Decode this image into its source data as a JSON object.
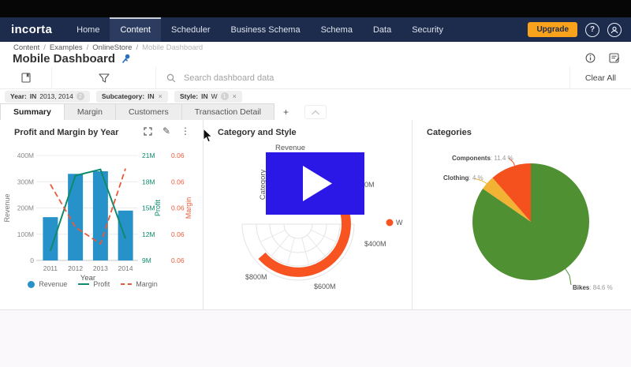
{
  "topnav": {
    "brand": "incorta",
    "items": [
      {
        "label": "Home",
        "active": false
      },
      {
        "label": "Content",
        "active": true
      },
      {
        "label": "Scheduler",
        "active": false
      },
      {
        "label": "Business Schema",
        "active": false
      },
      {
        "label": "Schema",
        "active": false
      },
      {
        "label": "Data",
        "active": false
      },
      {
        "label": "Security",
        "active": false
      }
    ],
    "upgrade_label": "Upgrade",
    "help_icon": "question-mark",
    "user_icon": "person"
  },
  "breadcrumb": [
    "Content",
    "Examples",
    "OnlineStore",
    "Mobile Dashboard"
  ],
  "page": {
    "title": "Mobile Dashboard"
  },
  "toolbar": {
    "search_placeholder": "Search dashboard data",
    "clear_all_label": "Clear All"
  },
  "filters": [
    {
      "name": "Year",
      "op": "IN",
      "value": "2013, 2014",
      "badge": "2",
      "closable": false
    },
    {
      "name": "Subcategory",
      "op": "IN",
      "value": "",
      "badge": "",
      "closable": true
    },
    {
      "name": "Style",
      "op": "IN",
      "value": "W",
      "badge": "1",
      "closable": true
    }
  ],
  "tabs": {
    "items": [
      {
        "label": "Summary",
        "active": true
      },
      {
        "label": "Margin",
        "active": false
      },
      {
        "label": "Customers",
        "active": false
      },
      {
        "label": "Transaction Detail",
        "active": false
      }
    ],
    "add_label": "+"
  },
  "panels": [
    {
      "title": "Profit and Margin by Year"
    },
    {
      "title": "Category and Style"
    },
    {
      "title": "Categories"
    }
  ],
  "chart_data": [
    {
      "type": "bar",
      "subtype": "combo-bar-line",
      "title": "Profit and Margin by Year",
      "categories": [
        "2011",
        "2012",
        "2013",
        "2014"
      ],
      "xlabel": "Year",
      "series": [
        {
          "name": "Revenue",
          "type": "bar",
          "axis": "left",
          "color": "#2791c9",
          "values": [
            165000000,
            330000000,
            340000000,
            190000000
          ]
        },
        {
          "name": "Profit",
          "type": "line",
          "axis": "profit",
          "color": "#0e8a6d",
          "values": [
            10100000,
            18700000,
            19400000,
            11500000
          ]
        },
        {
          "name": "Margin",
          "type": "dashed-line",
          "axis": "margin",
          "color": "#e85a3a",
          "values": [
            0.0627,
            0.0578,
            0.0559,
            0.0645
          ]
        }
      ],
      "axes": {
        "left": {
          "label": "Revenue",
          "ticks": [
            "400M",
            "300M",
            "200M",
            "100M",
            "0"
          ],
          "min": 0,
          "max": 400000000
        },
        "profit": {
          "label": "Profit",
          "ticks": [
            "21M",
            "18M",
            "15M",
            "12M",
            "9M"
          ],
          "min": 9000000,
          "max": 21000000
        },
        "margin": {
          "label": "Margin",
          "ticks": [
            "0.06",
            "0.06",
            "0.06",
            "0.06",
            "0.06"
          ],
          "min": 0.054,
          "max": 0.066
        }
      },
      "legend_position": "bottom",
      "grid": true
    },
    {
      "type": "radial",
      "title": "Category and Style",
      "xlabel_top": "Revenue",
      "ylabel_left": "Category",
      "axis_labels": [
        "$200M",
        "$400M",
        "$600M",
        "$800M"
      ],
      "legend": [
        {
          "label": "W",
          "color": "#f75421"
        }
      ],
      "series": [
        {
          "name": "W",
          "color": "#f75421",
          "start_angle": -20,
          "end_angle": 139,
          "approx_value": "$750M"
        }
      ]
    },
    {
      "type": "pie",
      "title": "Categories",
      "slices": [
        {
          "label": "Bikes",
          "pct": 84.6,
          "color": "#4f9132"
        },
        {
          "label": "Clothing",
          "pct": 4,
          "color": "#f2b233"
        },
        {
          "label": "Components",
          "pct": 11.4,
          "color": "#f4511e"
        }
      ]
    }
  ],
  "video_overlay": {
    "color": "#2b17e6",
    "play_icon": "play-triangle"
  }
}
